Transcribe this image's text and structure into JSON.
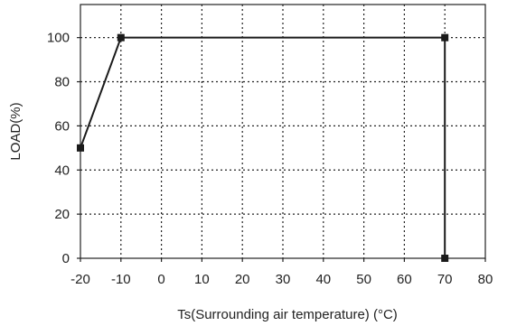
{
  "chart_data": {
    "type": "line",
    "title": "",
    "xlabel": "Ts(Surrounding air temperature) (°C)",
    "ylabel": "LOAD(%)",
    "xlim": [
      -20,
      80
    ],
    "ylim": [
      0,
      115
    ],
    "x_ticks": [
      -20,
      -10,
      0,
      10,
      20,
      30,
      40,
      50,
      60,
      70,
      80
    ],
    "y_ticks": [
      0,
      20,
      40,
      60,
      80,
      100
    ],
    "grid": true,
    "legend": "none",
    "series": [
      {
        "color": "#1a1a1a",
        "marker": "square",
        "points": [
          {
            "x": -20,
            "y": 50
          },
          {
            "x": -10,
            "y": 100
          },
          {
            "x": 70,
            "y": 100
          },
          {
            "x": 70,
            "y": 0
          }
        ]
      }
    ]
  }
}
